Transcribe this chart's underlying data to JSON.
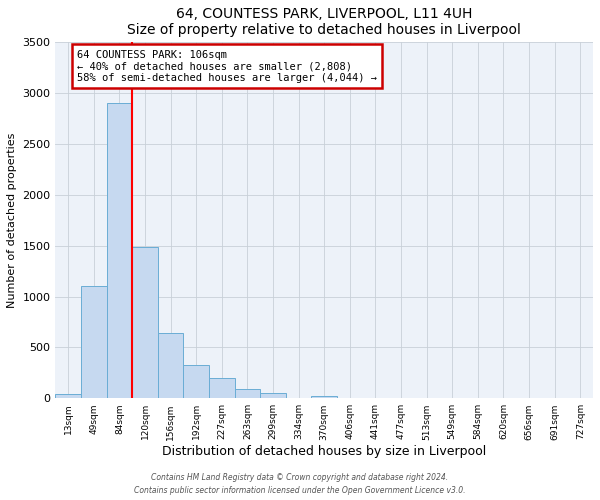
{
  "title": "64, COUNTESS PARK, LIVERPOOL, L11 4UH",
  "subtitle": "Size of property relative to detached houses in Liverpool",
  "xlabel": "Distribution of detached houses by size in Liverpool",
  "ylabel": "Number of detached properties",
  "bin_labels": [
    "13sqm",
    "49sqm",
    "84sqm",
    "120sqm",
    "156sqm",
    "192sqm",
    "227sqm",
    "263sqm",
    "299sqm",
    "334sqm",
    "370sqm",
    "406sqm",
    "441sqm",
    "477sqm",
    "513sqm",
    "549sqm",
    "584sqm",
    "620sqm",
    "656sqm",
    "691sqm",
    "727sqm"
  ],
  "bar_values": [
    40,
    1100,
    2900,
    1490,
    640,
    325,
    195,
    95,
    55,
    0,
    20,
    0,
    0,
    0,
    0,
    0,
    0,
    0,
    0,
    0,
    0
  ],
  "bar_color": "#c6d9f0",
  "bar_edge_color": "#6aadd5",
  "red_line_x": 2.5,
  "annotation_title": "64 COUNTESS PARK: 106sqm",
  "annotation_line1": "← 40% of detached houses are smaller (2,808)",
  "annotation_line2": "58% of semi-detached houses are larger (4,044) →",
  "annotation_box_color": "#ffffff",
  "annotation_box_edge_color": "#cc0000",
  "ylim": [
    0,
    3500
  ],
  "yticks": [
    0,
    500,
    1000,
    1500,
    2000,
    2500,
    3000,
    3500
  ],
  "footer_line1": "Contains HM Land Registry data © Crown copyright and database right 2024.",
  "footer_line2": "Contains public sector information licensed under the Open Government Licence v3.0.",
  "background_color": "#ffffff",
  "axes_facecolor": "#edf2f9",
  "grid_color": "#c8d0d8"
}
